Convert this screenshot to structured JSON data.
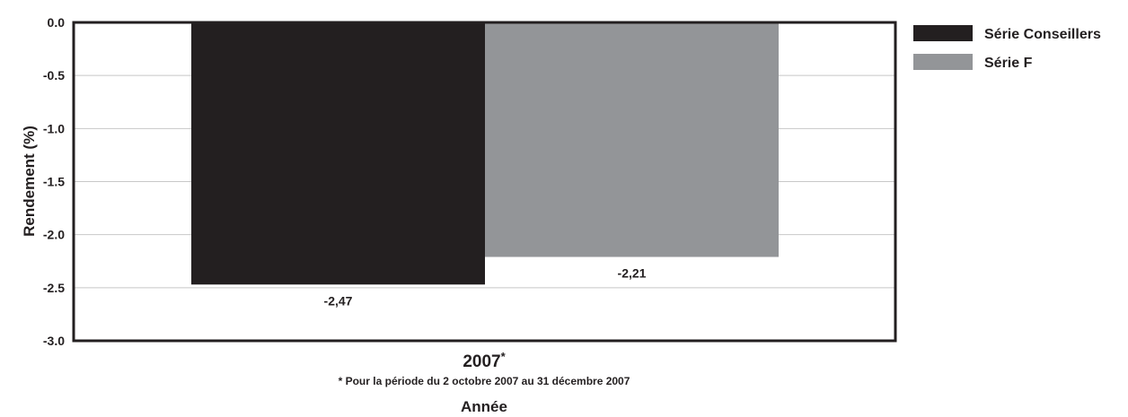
{
  "chart_data": {
    "type": "bar",
    "categories": [
      "2007"
    ],
    "category_marker": "*",
    "series": [
      {
        "name": "Série Conseillers",
        "values": [
          -2.47
        ],
        "labels": [
          "-2,47"
        ],
        "color": "#231f20"
      },
      {
        "name": "Série F",
        "values": [
          -2.21
        ],
        "labels": [
          "-2,21"
        ],
        "color": "#939598"
      }
    ],
    "ylabel": "Rendement (%)",
    "xlabel": "Année",
    "ylim": [
      -3.0,
      0.0
    ],
    "yticks": [
      0.0,
      -0.5,
      -1.0,
      -1.5,
      -2.0,
      -2.5,
      -3.0
    ],
    "ytick_labels": [
      "0.0",
      "-0.5",
      "-1.0",
      "-1.5",
      "-2.0",
      "-2.5",
      "-3.0"
    ],
    "footnote": "* Pour la période du 2 octobre 2007 au 31 décembre 2007",
    "grid": true,
    "legend_position": "top-right"
  }
}
